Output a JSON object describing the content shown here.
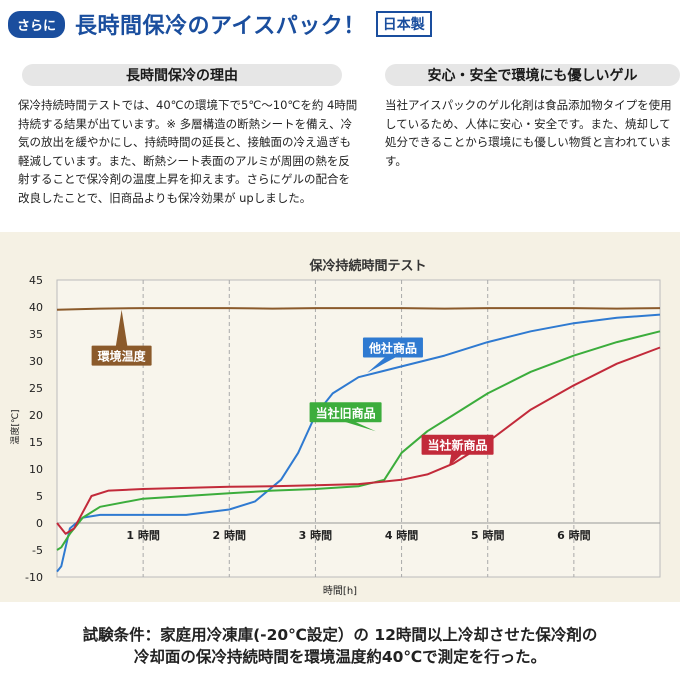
{
  "header": {
    "badge": "さらに",
    "title": "長時間保冷のアイスパック！",
    "made_in": "日本製"
  },
  "left": {
    "heading": "長時間保冷の理由",
    "body": "保冷持続時間テストでは、40℃の環境下で5℃〜10℃を約 4時間持続する結果が出ています。※ 多層構造の断熱シートを備え、冷気の放出を緩やかにし、持続時間の延長と、接触面の冷え過ぎも軽減しています。また、断熱シート表面のアルミが周囲の熱を反射することで保冷剤の温度上昇を抑えます。さらにゲルの配合を改良したことで、旧商品よりも保冷効果が upしました。"
  },
  "right": {
    "heading": "安心・安全で環境にも優しいゲル",
    "body": "当社アイスパックのゲル化剤は食品添加物タイプを使用しているため、人体に安心・安全です。また、焼却して処分できることから環境にも優しい物質と言われています。"
  },
  "footer": {
    "line1": "試験条件：家庭用冷凍庫(-20℃設定）の 12時間以上冷却させた保冷剤の",
    "line2": "冷却面の保冷持続時間を環境温度約40℃で測定を行った。"
  },
  "chart_data": {
    "type": "line",
    "title": "保冷持続時間テスト",
    "xlabel": "時間[h]",
    "ylabel": "温度[℃]",
    "xlim": [
      0,
      7
    ],
    "ylim": [
      -10,
      45
    ],
    "yticks": [
      -10,
      -5,
      0,
      5,
      10,
      15,
      20,
      25,
      30,
      35,
      40,
      45
    ],
    "xticks": [
      1,
      2,
      3,
      4,
      5,
      6
    ],
    "xtick_labels": [
      "1 時間",
      "2 時間",
      "3 時間",
      "4 時間",
      "5 時間",
      "6 時間"
    ],
    "grid": "vertical dashed",
    "series": [
      {
        "name": "環境温度",
        "color": "#8b5a2b",
        "x": [
          0,
          0.5,
          1,
          1.5,
          2,
          2.5,
          3,
          3.5,
          4,
          4.5,
          5,
          5.5,
          6,
          6.5,
          7
        ],
        "y": [
          39.5,
          39.7,
          39.8,
          39.8,
          39.8,
          39.7,
          39.8,
          39.8,
          39.8,
          39.7,
          39.8,
          39.8,
          39.8,
          39.7,
          39.8
        ]
      },
      {
        "name": "他社商品",
        "color": "#2f7ad1",
        "x": [
          0,
          0.05,
          0.15,
          0.3,
          0.5,
          0.8,
          1,
          1.5,
          2,
          2.3,
          2.6,
          2.8,
          3,
          3.2,
          3.5,
          4,
          4.5,
          5,
          5.5,
          6,
          6.5,
          7
        ],
        "y": [
          -9,
          -8,
          -1,
          1,
          1.5,
          1.5,
          1.5,
          1.5,
          2.5,
          4,
          8,
          13,
          20,
          24,
          27,
          29,
          31,
          33.5,
          35.5,
          37,
          38,
          38.6
        ]
      },
      {
        "name": "当社旧商品",
        "color": "#3cad3c",
        "x": [
          0,
          0.05,
          0.15,
          0.3,
          0.5,
          1,
          1.5,
          2,
          2.5,
          3,
          3.5,
          3.8,
          4,
          4.3,
          4.6,
          5,
          5.5,
          6,
          6.5,
          7
        ],
        "y": [
          -5,
          -4.5,
          -2,
          1,
          3,
          4.5,
          5,
          5.5,
          6,
          6.3,
          6.8,
          8,
          13,
          17,
          20,
          24,
          28,
          31,
          33.5,
          35.5
        ]
      },
      {
        "name": "当社新商品",
        "color": "#c22a3a",
        "x": [
          0,
          0.1,
          0.2,
          0.3,
          0.4,
          0.6,
          1,
          1.5,
          2,
          2.5,
          3,
          3.5,
          4,
          4.3,
          4.6,
          5,
          5.5,
          6,
          6.5,
          7
        ],
        "y": [
          0,
          -2,
          -1,
          2,
          5,
          6,
          6.3,
          6.5,
          6.7,
          6.8,
          7,
          7.2,
          8,
          9,
          11,
          15,
          21,
          25.5,
          29.5,
          32.5
        ]
      }
    ],
    "labels": [
      "環境温度",
      "他社商品",
      "当社旧商品",
      "当社新商品"
    ]
  }
}
